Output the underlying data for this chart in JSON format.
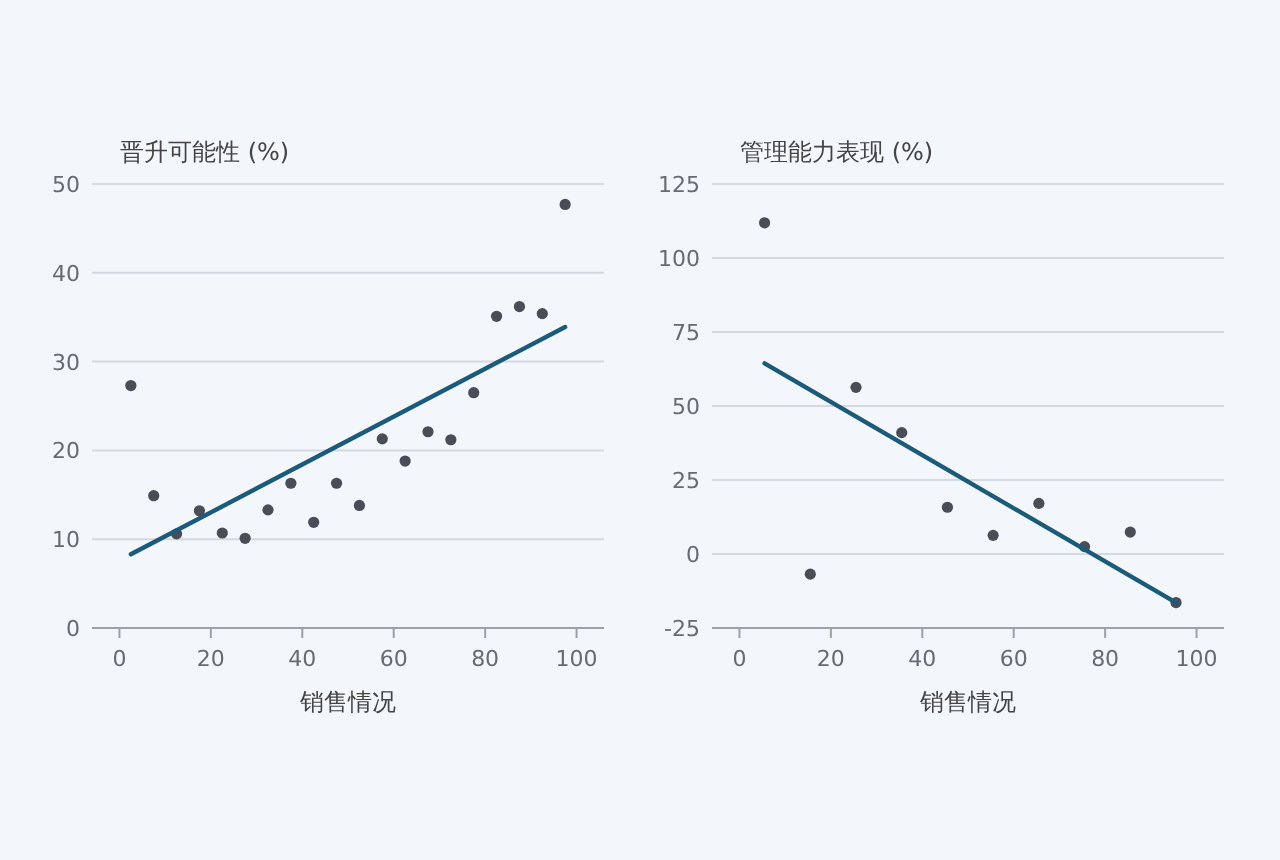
{
  "chart_data": [
    {
      "type": "scatter",
      "ylabel": "晋升可能性 (%)",
      "xlabel": "销售情况",
      "xlim": [
        -6,
        106
      ],
      "xticks": [
        0,
        20,
        40,
        60,
        80,
        100
      ],
      "ylim": [
        0,
        50
      ],
      "yticks": [
        0,
        10,
        20,
        30,
        40,
        50
      ],
      "grid": "y",
      "series": [
        {
          "marker": "circle",
          "color": "#4a4d57",
          "x": [
            2.5,
            7.5,
            12.5,
            17.5,
            22.5,
            27.5,
            32.5,
            37.5,
            42.5,
            47.5,
            52.5,
            57.5,
            62.5,
            67.5,
            72.5,
            77.5,
            82.5,
            87.5,
            92.5,
            97.5
          ],
          "values": [
            27.3,
            14.9,
            10.6,
            13.2,
            10.7,
            10.1,
            13.3,
            16.3,
            11.9,
            16.3,
            13.8,
            21.3,
            18.8,
            22.1,
            21.2,
            26.5,
            35.1,
            36.2,
            35.4,
            47.7
          ]
        },
        {
          "type": "line",
          "marker": "none",
          "color": "#1b5a78",
          "x": [
            2.5,
            97.5
          ],
          "values": [
            8.3,
            33.9
          ]
        }
      ]
    },
    {
      "type": "scatter",
      "ylabel": "管理能力表现 (%)",
      "xlabel": "销售情况",
      "xlim": [
        -6,
        106
      ],
      "xticks": [
        0,
        20,
        40,
        60,
        80,
        100
      ],
      "ylim": [
        -25,
        125
      ],
      "yticks": [
        -25,
        0,
        25,
        50,
        75,
        100,
        125
      ],
      "grid": "y",
      "series": [
        {
          "marker": "circle",
          "color": "#4a4d57",
          "x": [
            5.5,
            15.5,
            25.5,
            35.5,
            45.5,
            55.5,
            65.5,
            75.5,
            85.5,
            95.5
          ],
          "values": [
            111.9,
            -6.8,
            56.3,
            41.0,
            15.8,
            6.3,
            17.1,
            2.5,
            7.4,
            -16.4
          ]
        },
        {
          "type": "line",
          "marker": "none",
          "color": "#1b5a78",
          "x": [
            5.5,
            95.5
          ],
          "values": [
            64.4,
            -16.4
          ]
        }
      ]
    }
  ]
}
